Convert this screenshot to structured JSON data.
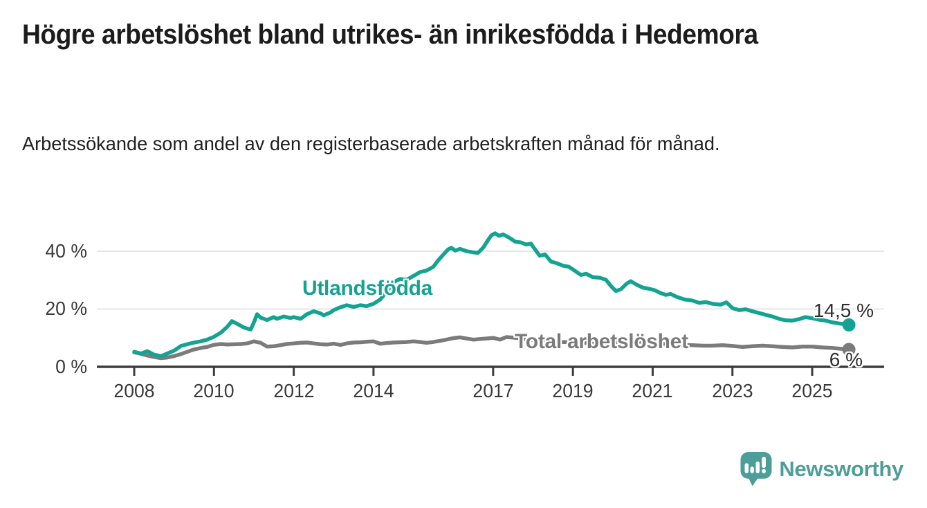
{
  "header": {
    "title": "Högre arbetslöshet bland utrikes- än inrikesfödda i Hedemora",
    "subtitle": "Arbetssökande som andel av den registerbaserade arbetskraften månad för månad."
  },
  "chart_data": {
    "type": "line",
    "title": "Högre arbetslöshet bland utrikes- än inrikesfödda i Hedemora",
    "subtitle": "Arbetssökande som andel av den registerbaserade arbetskraften månad för månad.",
    "x_unit": "year (monthly data)",
    "y_unit": "percent of registered labour force",
    "x_range": [
      2008,
      2026
    ],
    "ylim": [
      0,
      48
    ],
    "grid": "horizontal",
    "legend_position": "inline-labels",
    "x_ticks": [
      "2008",
      "2010",
      "2012",
      "2014",
      "2017",
      "2019",
      "2021",
      "2023",
      "2025"
    ],
    "x_tick_years": [
      2008,
      2010,
      2012,
      2014,
      2017,
      2019,
      2021,
      2023,
      2025
    ],
    "y_ticks": [
      {
        "value": 0,
        "label": "0 %"
      },
      {
        "value": 20,
        "label": "20 %"
      },
      {
        "value": 40,
        "label": "40 %"
      }
    ],
    "series": [
      {
        "name": "Total arbetslöshet",
        "color": "#7B7B7B",
        "end_label": "6 %",
        "end_value": 6.0,
        "points": [
          [
            2008.0,
            5.0
          ],
          [
            2008.17,
            4.5
          ],
          [
            2008.33,
            3.9
          ],
          [
            2008.5,
            3.4
          ],
          [
            2008.67,
            3.0
          ],
          [
            2008.83,
            3.2
          ],
          [
            2009.0,
            3.7
          ],
          [
            2009.17,
            4.4
          ],
          [
            2009.33,
            5.2
          ],
          [
            2009.5,
            6.0
          ],
          [
            2009.67,
            6.5
          ],
          [
            2009.83,
            6.9
          ],
          [
            2010.0,
            7.6
          ],
          [
            2010.17,
            7.9
          ],
          [
            2010.33,
            7.7
          ],
          [
            2010.5,
            7.8
          ],
          [
            2010.67,
            7.9
          ],
          [
            2010.83,
            8.1
          ],
          [
            2011.0,
            8.8
          ],
          [
            2011.17,
            8.3
          ],
          [
            2011.33,
            7.0
          ],
          [
            2011.5,
            7.1
          ],
          [
            2011.67,
            7.5
          ],
          [
            2011.83,
            7.9
          ],
          [
            2012.0,
            8.1
          ],
          [
            2012.17,
            8.3
          ],
          [
            2012.33,
            8.4
          ],
          [
            2012.5,
            8.1
          ],
          [
            2012.67,
            7.8
          ],
          [
            2012.83,
            7.7
          ],
          [
            2013.0,
            8.0
          ],
          [
            2013.17,
            7.6
          ],
          [
            2013.33,
            8.1
          ],
          [
            2013.5,
            8.4
          ],
          [
            2013.67,
            8.5
          ],
          [
            2013.83,
            8.7
          ],
          [
            2014.0,
            8.8
          ],
          [
            2014.17,
            8.0
          ],
          [
            2014.33,
            8.2
          ],
          [
            2014.5,
            8.4
          ],
          [
            2014.67,
            8.5
          ],
          [
            2014.83,
            8.6
          ],
          [
            2015.0,
            8.8
          ],
          [
            2015.17,
            8.6
          ],
          [
            2015.33,
            8.3
          ],
          [
            2015.5,
            8.6
          ],
          [
            2015.67,
            9.0
          ],
          [
            2015.83,
            9.4
          ],
          [
            2016.0,
            9.9
          ],
          [
            2016.17,
            10.2
          ],
          [
            2016.33,
            9.8
          ],
          [
            2016.5,
            9.4
          ],
          [
            2016.67,
            9.6
          ],
          [
            2016.83,
            9.8
          ],
          [
            2017.0,
            10.0
          ],
          [
            2017.17,
            9.4
          ],
          [
            2017.33,
            10.3
          ],
          [
            2017.5,
            10.1
          ],
          [
            2017.67,
            9.9
          ],
          [
            2017.83,
            9.6
          ],
          [
            2018.0,
            9.3
          ],
          [
            2018.25,
            8.8
          ],
          [
            2018.5,
            8.5
          ],
          [
            2018.75,
            8.6
          ],
          [
            2019.0,
            8.5
          ],
          [
            2019.25,
            8.3
          ],
          [
            2019.5,
            8.1
          ],
          [
            2019.75,
            8.0
          ],
          [
            2020.0,
            8.2
          ],
          [
            2020.25,
            8.6
          ],
          [
            2020.5,
            8.9
          ],
          [
            2020.75,
            8.6
          ],
          [
            2021.0,
            8.3
          ],
          [
            2021.25,
            8.0
          ],
          [
            2021.5,
            7.8
          ],
          [
            2021.75,
            7.6
          ],
          [
            2022.0,
            7.5
          ],
          [
            2022.25,
            7.3
          ],
          [
            2022.5,
            7.3
          ],
          [
            2022.75,
            7.5
          ],
          [
            2023.0,
            7.2
          ],
          [
            2023.25,
            6.9
          ],
          [
            2023.5,
            7.1
          ],
          [
            2023.75,
            7.3
          ],
          [
            2024.0,
            7.1
          ],
          [
            2024.25,
            6.9
          ],
          [
            2024.5,
            6.7
          ],
          [
            2024.75,
            7.0
          ],
          [
            2025.0,
            7.0
          ],
          [
            2025.25,
            6.7
          ],
          [
            2025.5,
            6.5
          ],
          [
            2025.75,
            6.2
          ],
          [
            2025.92,
            6.0
          ]
        ]
      },
      {
        "name": "Utlandsfödda",
        "color": "#14A392",
        "end_label": "14,5 %",
        "end_value": 14.5,
        "points": [
          [
            2008.0,
            5.2
          ],
          [
            2008.17,
            4.6
          ],
          [
            2008.33,
            5.4
          ],
          [
            2008.5,
            4.2
          ],
          [
            2008.67,
            3.7
          ],
          [
            2008.83,
            4.6
          ],
          [
            2009.0,
            5.6
          ],
          [
            2009.17,
            7.2
          ],
          [
            2009.33,
            7.8
          ],
          [
            2009.5,
            8.4
          ],
          [
            2009.67,
            8.8
          ],
          [
            2009.83,
            9.4
          ],
          [
            2010.0,
            10.4
          ],
          [
            2010.17,
            11.8
          ],
          [
            2010.33,
            13.8
          ],
          [
            2010.45,
            15.8
          ],
          [
            2010.58,
            14.9
          ],
          [
            2010.75,
            13.6
          ],
          [
            2010.92,
            12.9
          ],
          [
            2011.0,
            15.3
          ],
          [
            2011.08,
            18.2
          ],
          [
            2011.17,
            17.0
          ],
          [
            2011.33,
            16.2
          ],
          [
            2011.5,
            17.2
          ],
          [
            2011.58,
            16.6
          ],
          [
            2011.75,
            17.4
          ],
          [
            2011.92,
            16.9
          ],
          [
            2012.0,
            17.2
          ],
          [
            2012.17,
            16.6
          ],
          [
            2012.33,
            18.2
          ],
          [
            2012.5,
            19.2
          ],
          [
            2012.67,
            18.5
          ],
          [
            2012.75,
            17.8
          ],
          [
            2012.92,
            18.8
          ],
          [
            2013.0,
            19.6
          ],
          [
            2013.17,
            20.6
          ],
          [
            2013.33,
            21.3
          ],
          [
            2013.5,
            20.7
          ],
          [
            2013.67,
            21.3
          ],
          [
            2013.83,
            21.0
          ],
          [
            2014.0,
            21.8
          ],
          [
            2014.17,
            23.3
          ],
          [
            2014.33,
            26.0
          ],
          [
            2014.5,
            29.3
          ],
          [
            2014.67,
            30.4
          ],
          [
            2014.83,
            30.1
          ],
          [
            2015.0,
            31.4
          ],
          [
            2015.17,
            32.8
          ],
          [
            2015.33,
            33.3
          ],
          [
            2015.5,
            34.6
          ],
          [
            2015.62,
            36.8
          ],
          [
            2015.75,
            38.8
          ],
          [
            2015.87,
            40.6
          ],
          [
            2015.95,
            41.2
          ],
          [
            2016.05,
            40.2
          ],
          [
            2016.17,
            40.8
          ],
          [
            2016.33,
            40.0
          ],
          [
            2016.5,
            39.6
          ],
          [
            2016.62,
            39.4
          ],
          [
            2016.75,
            41.2
          ],
          [
            2016.87,
            43.8
          ],
          [
            2016.95,
            45.4
          ],
          [
            2017.05,
            46.2
          ],
          [
            2017.15,
            45.3
          ],
          [
            2017.25,
            45.8
          ],
          [
            2017.4,
            44.7
          ],
          [
            2017.55,
            43.3
          ],
          [
            2017.7,
            43.0
          ],
          [
            2017.83,
            42.3
          ],
          [
            2017.95,
            42.6
          ],
          [
            2018.05,
            40.6
          ],
          [
            2018.17,
            38.4
          ],
          [
            2018.3,
            38.9
          ],
          [
            2018.45,
            36.4
          ],
          [
            2018.6,
            35.8
          ],
          [
            2018.75,
            35.0
          ],
          [
            2018.9,
            34.6
          ],
          [
            2019.05,
            33.2
          ],
          [
            2019.2,
            31.8
          ],
          [
            2019.33,
            32.2
          ],
          [
            2019.5,
            31.0
          ],
          [
            2019.67,
            30.8
          ],
          [
            2019.83,
            30.1
          ],
          [
            2019.95,
            28.0
          ],
          [
            2020.08,
            26.2
          ],
          [
            2020.2,
            26.8
          ],
          [
            2020.35,
            28.8
          ],
          [
            2020.45,
            29.6
          ],
          [
            2020.6,
            28.4
          ],
          [
            2020.75,
            27.4
          ],
          [
            2020.9,
            27.0
          ],
          [
            2021.05,
            26.5
          ],
          [
            2021.2,
            25.5
          ],
          [
            2021.33,
            24.9
          ],
          [
            2021.45,
            25.2
          ],
          [
            2021.6,
            24.2
          ],
          [
            2021.8,
            23.3
          ],
          [
            2022.0,
            22.9
          ],
          [
            2022.17,
            22.1
          ],
          [
            2022.33,
            22.4
          ],
          [
            2022.5,
            21.8
          ],
          [
            2022.7,
            21.5
          ],
          [
            2022.85,
            22.3
          ],
          [
            2023.0,
            20.3
          ],
          [
            2023.17,
            19.6
          ],
          [
            2023.33,
            19.9
          ],
          [
            2023.5,
            19.2
          ],
          [
            2023.67,
            18.6
          ],
          [
            2023.83,
            18.0
          ],
          [
            2024.0,
            17.4
          ],
          [
            2024.17,
            16.6
          ],
          [
            2024.33,
            16.1
          ],
          [
            2024.5,
            16.0
          ],
          [
            2024.67,
            16.5
          ],
          [
            2024.83,
            17.2
          ],
          [
            2025.0,
            16.8
          ],
          [
            2025.17,
            16.3
          ],
          [
            2025.33,
            16.0
          ],
          [
            2025.5,
            15.4
          ],
          [
            2025.67,
            15.0
          ],
          [
            2025.83,
            14.7
          ],
          [
            2025.92,
            14.5
          ]
        ]
      }
    ]
  },
  "footer": {
    "brand": "Newsworthy",
    "brand_color": "#4D9E99",
    "logo_icon": "speech-bubble-bar-chart-exclamation"
  },
  "style": {
    "axis_color": "#3D3D3D",
    "grid_color": "#DBDBDB",
    "title_color": "#1C1C1C"
  }
}
